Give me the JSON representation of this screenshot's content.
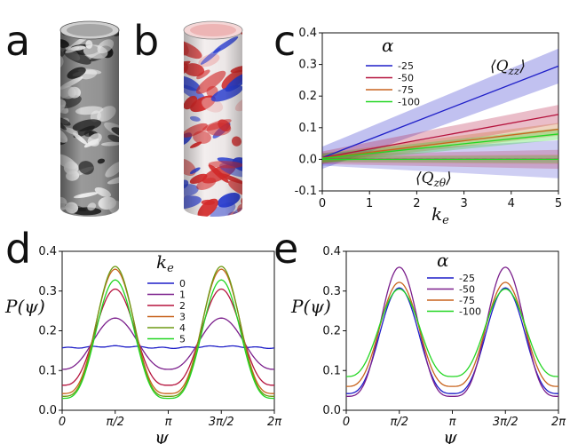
{
  "panel_labels": {
    "a": "a",
    "b": "b",
    "c": "c",
    "d": "d",
    "e": "e"
  },
  "colors": {
    "blue": "#1f1fc8",
    "purple": "#7b1f8c",
    "crimson": "#b5133d",
    "orange": "#c8641e",
    "olive": "#6e9a14",
    "green": "#22d622"
  },
  "chart_data": [
    {
      "panel": "c",
      "type": "line",
      "xlabel": "k_e",
      "ylabel": "",
      "xlim": [
        0,
        5
      ],
      "ylim": [
        -0.1,
        0.4
      ],
      "xticks": [
        "0",
        "1",
        "2",
        "3",
        "4",
        "5"
      ],
      "yticks": [
        "-0.1",
        "0.0",
        "0.1",
        "0.2",
        "0.3",
        "0.4"
      ],
      "legend_title": "α",
      "annotations": {
        "qzz": "⟨Q_zz⟩",
        "qzt": "⟨Q_zθ⟩"
      },
      "x": [
        0,
        5
      ],
      "series": [
        {
          "name": "-25",
          "color": "#1f1fc8",
          "qzz": [
            0.005,
            0.295
          ],
          "qzz_band": [
            0.035,
            0.055
          ],
          "qzt": [
            0.0,
            0.0
          ],
          "qzt_band": [
            0.02,
            0.06
          ]
        },
        {
          "name": "-50",
          "color": "#b5133d",
          "qzz": [
            0.005,
            0.142
          ],
          "qzz_band": [
            0.02,
            0.03
          ],
          "qzt": [
            0.0,
            0.0
          ],
          "qzt_band": [
            0.015,
            0.03
          ]
        },
        {
          "name": "-75",
          "color": "#c8641e",
          "qzz": [
            0.004,
            0.095
          ],
          "qzz_band": [
            0.015,
            0.02
          ],
          "qzt": [
            0.0,
            0.0
          ],
          "qzt_band": [
            0.01,
            0.015
          ]
        },
        {
          "name": "-100",
          "color": "#22d622",
          "qzz": [
            0.003,
            0.08
          ],
          "qzz_band": [
            0.015,
            0.018
          ],
          "qzt": [
            0.0,
            0.0
          ],
          "qzt_band": [
            0.008,
            0.012
          ]
        }
      ]
    },
    {
      "panel": "d",
      "type": "line",
      "xlabel": "ψ",
      "ylabel": "P(ψ)",
      "xlim": [
        0,
        6.2832
      ],
      "ylim": [
        0,
        0.4
      ],
      "xticks": [
        "0",
        "π/2",
        "π",
        "3π/2",
        "2π"
      ],
      "yticks": [
        "0.0",
        "0.1",
        "0.2",
        "0.3",
        "0.4"
      ],
      "legend_title": "k_e",
      "series": [
        {
          "name": "0",
          "color": "#1f1fc8",
          "peak": 0.161,
          "trough": 0.157
        },
        {
          "name": "1",
          "color": "#7b1f8c",
          "peak": 0.232,
          "trough": 0.103
        },
        {
          "name": "2",
          "color": "#b5133d",
          "peak": 0.305,
          "trough": 0.063
        },
        {
          "name": "3",
          "color": "#c8641e",
          "peak": 0.355,
          "trough": 0.042
        },
        {
          "name": "4",
          "color": "#6e9a14",
          "peak": 0.362,
          "trough": 0.035
        },
        {
          "name": "5",
          "color": "#22d622",
          "peak": 0.328,
          "trough": 0.03
        }
      ]
    },
    {
      "panel": "e",
      "type": "line",
      "xlabel": "ψ",
      "ylabel": "P(ψ)",
      "xlim": [
        0,
        6.2832
      ],
      "ylim": [
        0,
        0.4
      ],
      "xticks": [
        "0",
        "π/2",
        "π",
        "3π/2",
        "2π"
      ],
      "yticks": [
        "0.0",
        "0.1",
        "0.2",
        "0.3",
        "0.4"
      ],
      "legend_title": "α",
      "series": [
        {
          "name": "-25",
          "color": "#1f1fc8",
          "peak": 0.308,
          "trough": 0.042
        },
        {
          "name": "-50",
          "color": "#7b1f8c",
          "peak": 0.36,
          "trough": 0.035
        },
        {
          "name": "-75",
          "color": "#c8641e",
          "peak": 0.322,
          "trough": 0.06
        },
        {
          "name": "-100",
          "color": "#22d622",
          "peak": 0.305,
          "trough": 0.085
        }
      ]
    }
  ]
}
